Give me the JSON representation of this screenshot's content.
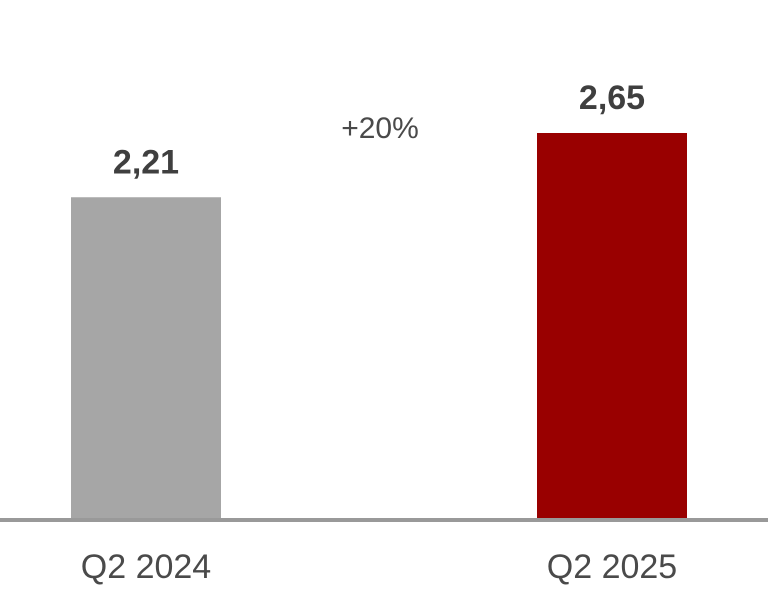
{
  "chart_data": {
    "type": "bar",
    "title": "",
    "xlabel": "",
    "ylabel": "",
    "categories": [
      "Q2 2024",
      "Q2 2025"
    ],
    "values": [
      2.21,
      2.65
    ],
    "value_labels": [
      "2,21",
      "2,65"
    ],
    "bar_colors": [
      "#a6a6a6",
      "#990000"
    ],
    "ylim": [
      0,
      2.65
    ],
    "grid": false,
    "legend": "none",
    "annotations": [
      {
        "text": "+20%",
        "between": [
          "Q2 2024",
          "Q2 2025"
        ]
      }
    ]
  },
  "colors": {
    "axis": "#999999",
    "label_text": "#4a4a4a",
    "value_text": "#3f3f3f"
  }
}
